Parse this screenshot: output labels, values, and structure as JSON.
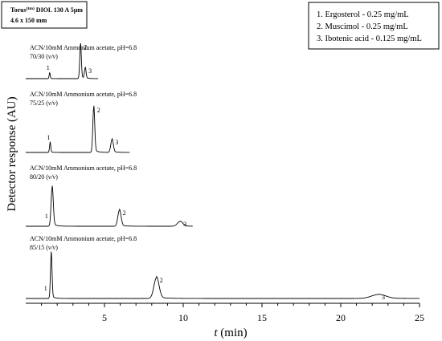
{
  "column_label": {
    "line1_prefix": "Torus",
    "line1_sup": "(tm)",
    "line1_suffix": " DIOL 130 A 5µm",
    "line2": "4.6 x 150 mm"
  },
  "legend": [
    "1. Ergosterol - 0.25 mg/mL",
    "2. Muscimol - 0.25 mg/mL",
    "3. Ibotenic acid - 0.125 mg/mL"
  ],
  "chart_data": {
    "type": "line",
    "xlabel_italic": "t",
    "xlabel_unit": " (min)",
    "ylabel": "Detector response (AU)",
    "xlim": [
      0,
      25
    ],
    "xticks": [
      "5",
      "10",
      "15",
      "20",
      "25"
    ],
    "xtick_values": [
      5,
      10,
      15,
      20,
      25
    ],
    "series": [
      {
        "condition_line1": "ACN/10mM Ammonium acetate, pH=6.8",
        "condition_line2_prefix": "70/30 (",
        "condition_line2_italic": "v/v",
        "condition_line2_suffix": ")",
        "time_scale": 0.42,
        "end": 4.6,
        "peaks": [
          {
            "label": "1",
            "t": 1.52,
            "h": 0.14,
            "w": 0.035
          },
          {
            "label": "2",
            "t": 3.48,
            "h": 0.85,
            "w": 0.05
          },
          {
            "label": "3",
            "t": 3.78,
            "h": 0.26,
            "w": 0.05
          }
        ]
      },
      {
        "condition_line1": "ACN/10mM Ammonium acetate, pH=6.8",
        "condition_line2_prefix": "75/25 (",
        "condition_line2_italic": "v/v",
        "condition_line2_suffix": ")",
        "time_scale": 0.68,
        "end": 6.6,
        "peaks": [
          {
            "label": "1",
            "t": 1.55,
            "h": 0.2,
            "w": 0.04
          },
          {
            "label": "2",
            "t": 4.32,
            "h": 0.93,
            "w": 0.06
          },
          {
            "label": "3",
            "t": 5.48,
            "h": 0.27,
            "w": 0.08
          }
        ]
      },
      {
        "condition_line1": "ACN/10mM Ammonium acetate, pH=6.8",
        "condition_line2_prefix": "80/20 (",
        "condition_line2_italic": "v/v",
        "condition_line2_suffix": ")",
        "time_scale": 0.75,
        "end": 10.6,
        "peaks": [
          {
            "label": "1",
            "t": 1.68,
            "h": 0.95,
            "w": 0.07
          },
          {
            "label": "2",
            "t": 5.95,
            "h": 0.4,
            "w": 0.1
          },
          {
            "label": "3",
            "t": 9.8,
            "h": 0.12,
            "w": 0.17
          }
        ]
      },
      {
        "condition_line1": "ACN/10mM Ammonium acetate, pH=6.8",
        "condition_line2_prefix": "85/15 (",
        "condition_line2_italic": "v/v",
        "condition_line2_suffix": ")",
        "time_scale": 1.0,
        "end": 25,
        "peaks": [
          {
            "label": "1",
            "t": 1.62,
            "h": 1.0,
            "w": 0.05
          },
          {
            "label": "2",
            "t": 8.3,
            "h": 0.47,
            "w": 0.16
          },
          {
            "label": "3",
            "t": 22.4,
            "h": 0.09,
            "w": 0.45
          }
        ]
      }
    ]
  }
}
